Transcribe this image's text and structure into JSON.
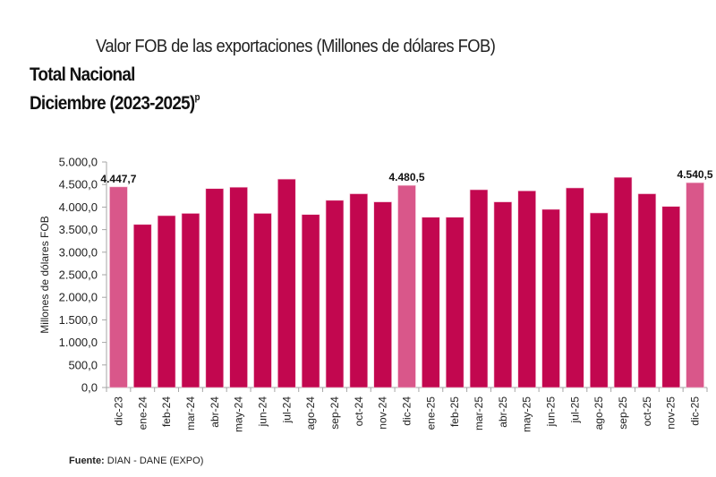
{
  "header": {
    "title": "Valor FOB de las exportaciones (Millones de dólares FOB)",
    "subtitle_1": "Total Nacional",
    "subtitle_2": "Diciembre (2023-2025)",
    "subtitle_2_superscript": "p"
  },
  "footer": {
    "source_label": "Fuente:",
    "source_value": " DIAN - DANE (EXPO)"
  },
  "colors": {
    "bar": "#c2074f",
    "bar_highlight": "#d9578a",
    "axis": "#a6a6a6",
    "text": "#1a1a1a"
  },
  "chart_data": {
    "type": "bar",
    "title": "Valor FOB de las exportaciones (Millones de dólares FOB)",
    "xlabel": "",
    "ylabel": "Millones de dólares FOB",
    "ylim": [
      0,
      5000
    ],
    "yticks": [
      0,
      500,
      1000,
      1500,
      2000,
      2500,
      3000,
      3500,
      4000,
      4500,
      5000
    ],
    "ytick_labels": [
      "0,0",
      "500,0",
      "1.000,0",
      "1.500,0",
      "2.000,0",
      "2.500,0",
      "3.000,0",
      "3.500,0",
      "4.000,0",
      "4.500,0",
      "5.000,0"
    ],
    "grid": false,
    "legend": "none",
    "categories": [
      "dic-23",
      "ene-24",
      "feb-24",
      "mar-24",
      "abr-24",
      "may-24",
      "jun-24",
      "jul-24",
      "ago-24",
      "sep-24",
      "oct-24",
      "nov-24",
      "dic-24",
      "ene-25",
      "feb-25",
      "mar-25",
      "abr-25",
      "may-25",
      "jun-25",
      "jul-25",
      "ago-25",
      "sep-25",
      "oct-25",
      "nov-25",
      "dic-25"
    ],
    "values": [
      4447.7,
      3615,
      3810,
      3860,
      4410,
      4440,
      3860,
      4620,
      3835,
      4150,
      4295,
      4115,
      4480.5,
      3775,
      3775,
      4385,
      4115,
      4360,
      3950,
      4425,
      3870,
      4660,
      4295,
      4015,
      4540.5
    ],
    "highlighted": [
      "dic-23",
      "dic-24",
      "dic-25"
    ],
    "data_labels": [
      {
        "category": "dic-23",
        "text": "4.447,7"
      },
      {
        "category": "dic-24",
        "text": "4.480,5"
      },
      {
        "category": "dic-25",
        "text": "4.540,5"
      }
    ]
  }
}
